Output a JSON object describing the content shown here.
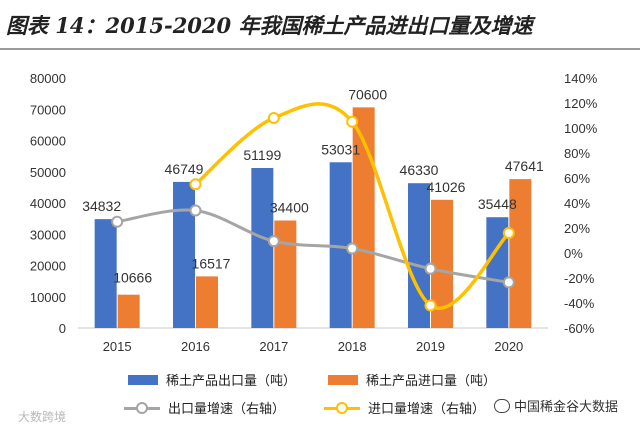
{
  "title": "图表 14：2015-2020 年我国稀土产品进出口量及增速",
  "watermark": "大数跨境",
  "source_badge": "中国稀金谷大数据",
  "colors": {
    "export": "#4472C4",
    "import": "#ED7D31",
    "export_growth": "#A5A5A5",
    "import_growth": "#FFC000"
  },
  "chart_data": {
    "type": "bar",
    "categories": [
      "2015",
      "2016",
      "2017",
      "2018",
      "2019",
      "2020"
    ],
    "series": [
      {
        "name": "稀土产品出口量（吨）",
        "type": "bar",
        "axis": "left",
        "values": [
          34832,
          46749,
          51199,
          53031,
          46330,
          35448
        ]
      },
      {
        "name": "稀土产品进口量（吨）",
        "type": "bar",
        "axis": "left",
        "values": [
          10666,
          16517,
          34400,
          70600,
          41026,
          47641
        ]
      },
      {
        "name": "出口量增速（右轴）",
        "type": "line",
        "axis": "right",
        "values": [
          25,
          34,
          9.5,
          3.6,
          -12.6,
          -23.5
        ]
      },
      {
        "name": "进口量增速（右轴）",
        "type": "line",
        "axis": "right",
        "values": [
          null,
          55,
          108,
          105,
          -42,
          16
        ]
      }
    ],
    "y_left": {
      "min": 0,
      "max": 80000,
      "step": 10000,
      "ticks": [
        "0",
        "10000",
        "20000",
        "30000",
        "40000",
        "50000",
        "60000",
        "70000",
        "80000"
      ]
    },
    "y_right": {
      "min": -60,
      "max": 140,
      "step": 20,
      "ticks": [
        "-60%",
        "-40%",
        "-20%",
        "0%",
        "20%",
        "40%",
        "60%",
        "80%",
        "100%",
        "120%",
        "140%"
      ]
    },
    "bar_labels_export": [
      "34832",
      "46749",
      "51199",
      "53031",
      "46330",
      "35448"
    ],
    "bar_labels_import": [
      "10666",
      "16517",
      "34400",
      "70600",
      "41026",
      "47641"
    ],
    "legend": [
      "稀土产品出口量（吨）",
      "稀土产品进口量（吨）",
      "出口量增速（右轴）",
      "进口量增速（右轴）"
    ]
  }
}
